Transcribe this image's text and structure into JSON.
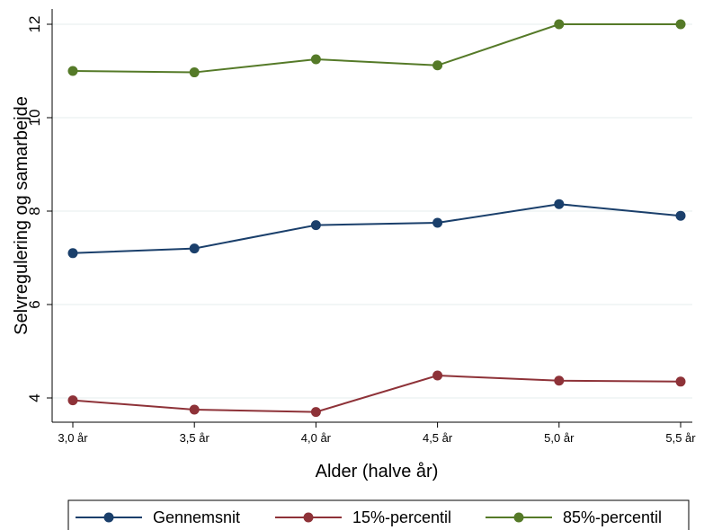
{
  "chart_data": {
    "type": "line",
    "title": "",
    "xlabel": "Alder (halve år)",
    "ylabel": "Selvregulering og samarbejde",
    "categories": [
      "3,0 år",
      "3,5 år",
      "4,0 år",
      "4,5 år",
      "5,0 år",
      "5,5 år"
    ],
    "yticks": [
      "4",
      "6",
      "8",
      "10",
      "12"
    ],
    "ylim": [
      3.3,
      12.3
    ],
    "grid": true,
    "legend_position": "bottom",
    "series": [
      {
        "name": "Gennemsnit",
        "color": "#1a3f6b",
        "values": [
          7.1,
          7.2,
          7.7,
          7.75,
          8.15,
          7.9
        ]
      },
      {
        "name": "15%-percentil",
        "color": "#8e3238",
        "values": [
          3.95,
          3.75,
          3.7,
          4.48,
          4.37,
          4.35
        ]
      },
      {
        "name": "85%-percentil",
        "color": "#557a28",
        "values": [
          11.0,
          10.97,
          11.25,
          11.12,
          12.0,
          12.0
        ]
      }
    ]
  }
}
